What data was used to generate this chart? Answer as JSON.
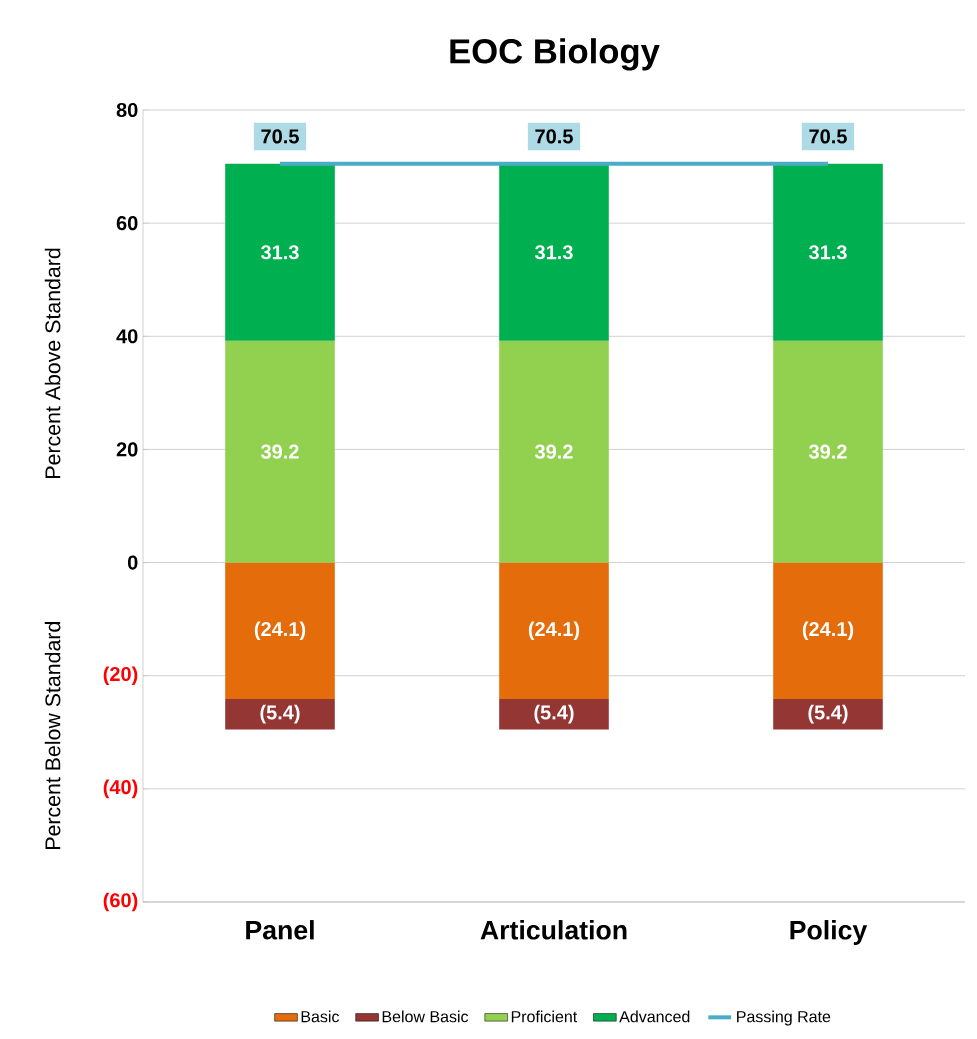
{
  "chart_data": {
    "type": "bar",
    "stacked": true,
    "title": "EOC Biology",
    "ylabel": "Percent Above Standard",
    "annotations": [
      "Percent Below Standard"
    ],
    "categories": [
      "Panel",
      "Articulation",
      "Policy"
    ],
    "ylim": [
      -60,
      80
    ],
    "yticks": [
      {
        "value": -60,
        "label": "(60)"
      },
      {
        "value": -40,
        "label": "(40)"
      },
      {
        "value": -20,
        "label": "(20)"
      },
      0,
      20,
      40,
      60,
      80
    ],
    "grid": "y",
    "legend": "bottom",
    "series": [
      {
        "name": "Basic",
        "color": "#e46c0a",
        "values": [
          -24.1,
          -24.1,
          -24.1
        ],
        "value_labels": [
          "(24.1)",
          "(24.1)",
          "(24.1)"
        ]
      },
      {
        "name": "Below Basic",
        "color": "#943634",
        "values": [
          -5.4,
          -5.4,
          -5.4
        ],
        "value_labels": [
          "(5.4)",
          "(5.4)",
          "(5.4)"
        ]
      },
      {
        "name": "Proficient",
        "color": "#92d050",
        "values": [
          39.2,
          39.2,
          39.2
        ],
        "value_labels": [
          "39.2",
          "39.2",
          "39.2"
        ]
      },
      {
        "name": "Advanced",
        "color": "#00b050",
        "values": [
          31.3,
          31.3,
          31.3
        ],
        "value_labels": [
          "31.3",
          "31.3",
          "31.3"
        ]
      },
      {
        "name": "Passing Rate",
        "type": "line",
        "color": "#4bacc6",
        "values": [
          70.5,
          70.5,
          70.5
        ],
        "value_labels": [
          "70.5",
          "70.5",
          "70.5"
        ]
      }
    ]
  }
}
